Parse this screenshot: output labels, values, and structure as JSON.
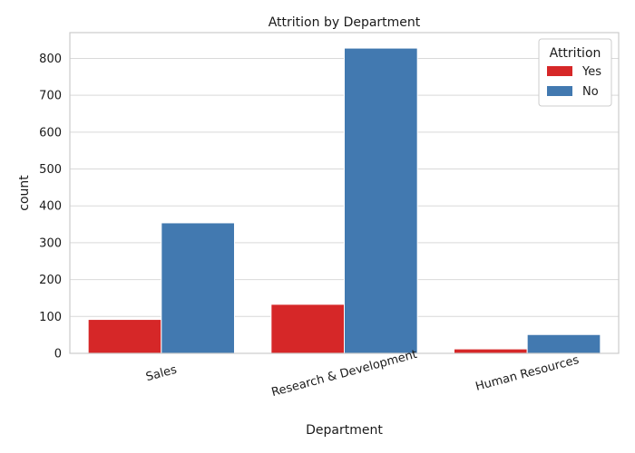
{
  "chart_data": {
    "type": "bar",
    "title": "Attrition by Department",
    "xlabel": "Department",
    "ylabel": "count",
    "categories": [
      "Sales",
      "Research & Development",
      "Human Resources"
    ],
    "series": [
      {
        "name": "Yes",
        "values": [
          92,
          133,
          12
        ],
        "color": "#d62728"
      },
      {
        "name": "No",
        "values": [
          354,
          828,
          51
        ],
        "color": "#4279b0"
      }
    ],
    "ylim": [
      0,
      870
    ],
    "yticks": [
      0,
      100,
      200,
      300,
      400,
      500,
      600,
      700,
      800
    ],
    "grid": true,
    "legend": {
      "title": "Attrition",
      "placement": "top-right"
    }
  }
}
